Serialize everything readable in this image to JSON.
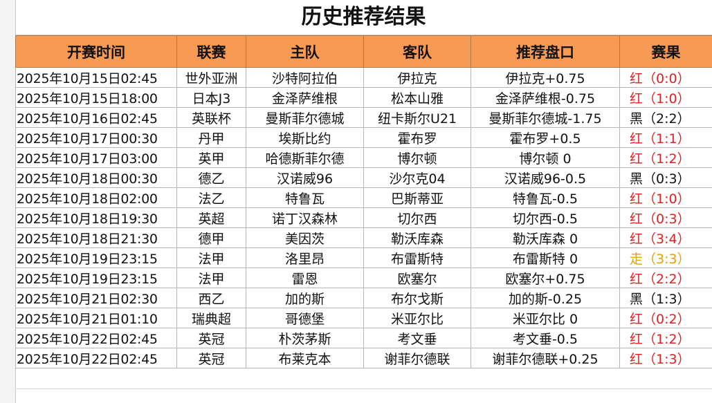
{
  "title": "历史推荐结果",
  "table": {
    "columns": [
      "开赛时间",
      "联赛",
      "主队",
      "客队",
      "推荐盘口",
      "赛果"
    ],
    "rows": [
      [
        "2025年10月15日02:45",
        "世外亚洲",
        "沙特阿拉伯",
        "伊拉克",
        "伊拉克+0.75",
        "红（0:0）"
      ],
      [
        "2025年10月15日18:00",
        "日本J3",
        "金泽萨维根",
        "松本山雅",
        "金泽萨维根-0.75",
        "红（1:0）"
      ],
      [
        "2025年10月16日02:45",
        "英联杯",
        "曼斯菲尔德城",
        "纽卡斯尔U21",
        "曼斯菲尔德城-1.75",
        "黑（2:2）"
      ],
      [
        "2025年10月17日00:30",
        "丹甲",
        "埃斯比约",
        "霍布罗",
        "霍布罗+0.5",
        "红（1:1）"
      ],
      [
        "2025年10月17日03:00",
        "英甲",
        "哈德斯菲尔德",
        "博尔顿",
        "博尔顿 0",
        "红（1:2）"
      ],
      [
        "2025年10月18日00:30",
        "德乙",
        "汉诺威96",
        "沙尔克04",
        "汉诺威96-0.5",
        "黑（0:3）"
      ],
      [
        "2025年10月18日02:00",
        "法乙",
        "特鲁瓦",
        "巴斯蒂亚",
        "特鲁瓦-0.5",
        "红（1:0）"
      ],
      [
        "2025年10月18日19:30",
        "英超",
        "诺丁汉森林",
        "切尔西",
        "切尔西-0.5",
        "红（0:3）"
      ],
      [
        "2025年10月18日21:30",
        "德甲",
        "美因茨",
        "勒沃库森",
        "勒沃库森 0",
        "红（3:4）"
      ],
      [
        "2025年10月19日23:15",
        "法甲",
        "洛里昂",
        "布雷斯特",
        "布雷斯特 0",
        "走（3:3）"
      ],
      [
        "2025年10月19日23:15",
        "法甲",
        "雷恩",
        "欧塞尔",
        "欧塞尔+0.75",
        "红（2:2）"
      ],
      [
        "2025年10月21日02:30",
        "西乙",
        "加的斯",
        "布尔戈斯",
        "加的斯-0.25",
        "黑（1:3）"
      ],
      [
        "2025年10月21日01:10",
        "瑞典超",
        "哥德堡",
        "米亚尔比",
        "米亚尔比 0",
        "红（0:2）"
      ],
      [
        "2025年10月22日02:45",
        "英冠",
        "朴茨茅斯",
        "考文垂",
        "考文垂-0.5",
        "红（1:2）"
      ],
      [
        "2025年10月22日02:45",
        "英冠",
        "布莱克本",
        "谢菲尔德联",
        "谢菲尔德联+0.25",
        "红（1:3）"
      ]
    ],
    "result_colors": [
      "#e02020",
      "#e02020",
      "#111111",
      "#e02020",
      "#e02020",
      "#111111",
      "#e02020",
      "#e02020",
      "#e02020",
      "#e8a000",
      "#e02020",
      "#111111",
      "#e02020",
      "#e02020",
      "#e02020"
    ]
  }
}
